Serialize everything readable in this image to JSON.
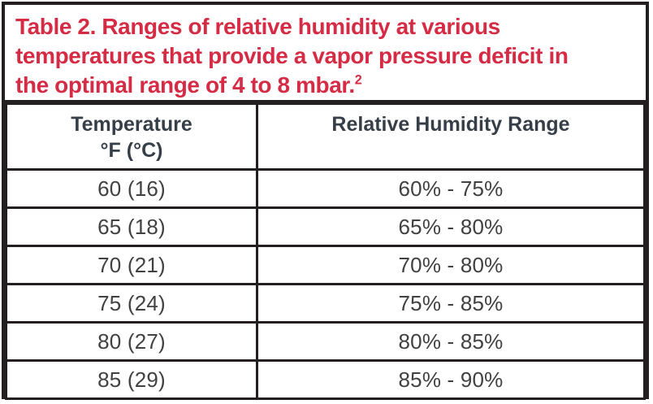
{
  "title": {
    "lines": [
      "Table 2. Ranges of relative humidity at various",
      "temperatures that provide a vapor pressure deficit in",
      "the optimal range of 4 to 8 mbar."
    ],
    "superscript": "2",
    "full_text": "Table 2. Ranges of relative humidity at various temperatures that provide a vapor pressure deficit in the optimal range of 4 to 8 mbar.2"
  },
  "colors": {
    "title_red": "#d62b45",
    "header_text": "#363e48",
    "body_text": "#414042",
    "border": "#231f20",
    "background": "#ffffff"
  },
  "table": {
    "headers": {
      "temperature_line1": "Temperature",
      "temperature_line2": "°F (°C)",
      "humidity": "Relative Humidity Range"
    },
    "rows": [
      {
        "temperature": "60 (16)",
        "humidity": "60% - 75%"
      },
      {
        "temperature": "65 (18)",
        "humidity": "65% - 80%"
      },
      {
        "temperature": "70 (21)",
        "humidity": "70% - 80%"
      },
      {
        "temperature": "75 (24)",
        "humidity": "75% - 85%"
      },
      {
        "temperature": "80 (27)",
        "humidity": "80% - 85%"
      },
      {
        "temperature": "85 (29)",
        "humidity": "85% - 90%"
      }
    ]
  }
}
